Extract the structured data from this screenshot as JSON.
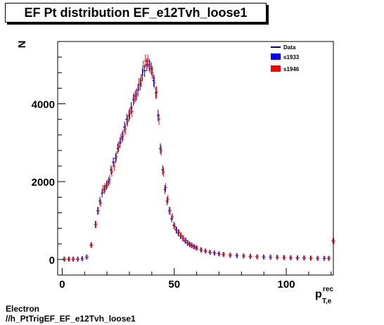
{
  "title": "EF Pt distribution EF_e12Tvh_loose1",
  "footer": {
    "line1": "Electron",
    "line2": "//h_PtTrigEF_EF_e12Tvh_loose1"
  },
  "colors": {
    "data": "#000099",
    "s1933": "#0000ff",
    "s1946": "#ff0000"
  },
  "chart_data": {
    "type": "scatter",
    "title": "EF Pt distribution EF_e12Tvh_loose1",
    "ylabel": "N",
    "xlabel_main": "p",
    "xlabel_sup": "rec",
    "xlabel_sub": "T,e",
    "xlim": [
      -2,
      121
    ],
    "ylim": [
      -400,
      5600
    ],
    "xticks": [
      0,
      50,
      100
    ],
    "yticks": [
      0,
      2000,
      4000
    ],
    "legend": {
      "position": "top-right",
      "entries": [
        "Data",
        "s1933",
        "s1946"
      ]
    },
    "x": [
      1,
      3,
      5,
      7,
      9,
      11,
      13,
      15,
      16,
      17,
      18,
      19,
      20,
      21,
      22,
      23,
      24,
      25,
      26,
      27,
      28,
      29,
      30,
      31,
      32,
      33,
      34,
      35,
      36,
      37,
      38,
      39,
      40,
      41,
      42,
      43,
      44,
      45,
      46,
      47,
      48,
      49,
      50,
      51,
      52,
      53,
      54,
      55,
      56,
      57,
      58,
      59,
      60,
      62,
      64,
      66,
      68,
      70,
      72,
      75,
      78,
      81,
      84,
      87,
      90,
      93,
      96,
      99,
      102,
      105,
      108,
      111,
      114,
      117,
      119,
      121
    ],
    "series": [
      {
        "name": "s1933",
        "values": [
          10,
          10,
          10,
          10,
          20,
          60,
          370,
          900,
          1250,
          1500,
          1700,
          1800,
          1900,
          2000,
          2300,
          2500,
          2600,
          2850,
          3000,
          3150,
          3400,
          3600,
          3700,
          3900,
          4100,
          4200,
          4350,
          4500,
          4750,
          4850,
          5000,
          5000,
          4900,
          4600,
          4280,
          3700,
          2850,
          2300,
          1800,
          1500,
          1250,
          1050,
          880,
          760,
          680,
          600,
          540,
          480,
          430,
          390,
          360,
          330,
          300,
          250,
          220,
          190,
          170,
          150,
          130,
          110,
          100,
          90,
          80,
          70,
          65,
          60,
          55,
          50,
          45,
          40,
          40,
          35,
          30,
          30,
          30,
          480
        ]
      },
      {
        "name": "s1946",
        "values": [
          10,
          10,
          10,
          10,
          20,
          60,
          370,
          900,
          1250,
          1450,
          1800,
          1850,
          1950,
          2050,
          2250,
          2400,
          2650,
          2900,
          3100,
          3200,
          3350,
          3550,
          3750,
          3800,
          4150,
          4250,
          4500,
          4600,
          4950,
          5100,
          5100,
          4950,
          4800,
          4550,
          4300,
          3600,
          2800,
          2250,
          1850,
          1550,
          1250,
          1100,
          850,
          750,
          700,
          620,
          540,
          490,
          420,
          380,
          350,
          320,
          290,
          240,
          210,
          180,
          160,
          140,
          130,
          110,
          100,
          90,
          80,
          70,
          60,
          60,
          55,
          50,
          45,
          40,
          40,
          35,
          30,
          30,
          30,
          470
        ]
      }
    ]
  }
}
